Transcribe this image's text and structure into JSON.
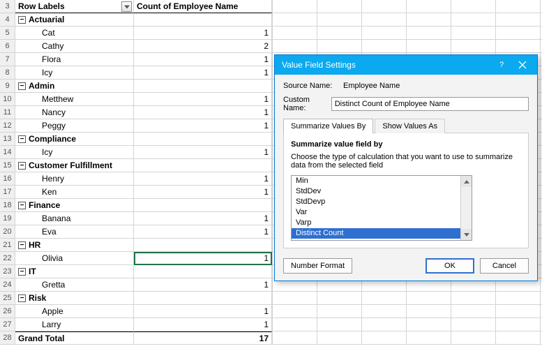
{
  "header": {
    "rowLabels": "Row Labels",
    "countCol": "Count of Employee Name",
    "startRowNum": 3
  },
  "pivot": [
    {
      "type": "group",
      "label": "Actuarial"
    },
    {
      "type": "item",
      "label": "Cat",
      "count": 1
    },
    {
      "type": "item",
      "label": "Cathy",
      "count": 2
    },
    {
      "type": "item",
      "label": "Flora",
      "count": 1
    },
    {
      "type": "item",
      "label": "Icy",
      "count": 1
    },
    {
      "type": "group",
      "label": "Admin"
    },
    {
      "type": "item",
      "label": "Metthew",
      "count": 1
    },
    {
      "type": "item",
      "label": "Nancy",
      "count": 1
    },
    {
      "type": "item",
      "label": "Peggy",
      "count": 1
    },
    {
      "type": "group",
      "label": "Compliance"
    },
    {
      "type": "item",
      "label": "Icy",
      "count": 1
    },
    {
      "type": "group",
      "label": "Customer Fulfillment"
    },
    {
      "type": "item",
      "label": "Henry",
      "count": 1
    },
    {
      "type": "item",
      "label": "Ken",
      "count": 1
    },
    {
      "type": "group",
      "label": "Finance"
    },
    {
      "type": "item",
      "label": "Banana",
      "count": 1
    },
    {
      "type": "item",
      "label": "Eva",
      "count": 1
    },
    {
      "type": "group",
      "label": "HR"
    },
    {
      "type": "item",
      "label": "Olivia",
      "count": 1,
      "selected": true
    },
    {
      "type": "group",
      "label": "IT"
    },
    {
      "type": "item",
      "label": "Gretta",
      "count": 1
    },
    {
      "type": "group",
      "label": "Risk"
    },
    {
      "type": "item",
      "label": "Apple",
      "count": 1
    },
    {
      "type": "item",
      "label": "Larry",
      "count": 1
    }
  ],
  "grandTotal": {
    "label": "Grand Total",
    "count": 17
  },
  "dialog": {
    "title": "Value Field Settings",
    "sourceNameLabel": "Source Name:",
    "sourceNameValue": "Employee Name",
    "customNameLabel": "Custom Name:",
    "customNameValue": "Distinct Count of Employee Name",
    "tab1": "Summarize Values By",
    "tab2": "Show Values As",
    "summarizeHeading": "Summarize value field by",
    "summarizeDesc": "Choose the type of calculation that you want to use to summarize data from the selected field",
    "listItems": [
      "Min",
      "StdDev",
      "StdDevp",
      "Var",
      "Varp",
      "Distinct Count"
    ],
    "listSelected": "Distinct Count",
    "numberFormatBtn": "Number Format",
    "okBtn": "OK",
    "cancelBtn": "Cancel"
  },
  "colors": {
    "accent": "#0ba9ef",
    "selection": "#2f6fd0",
    "excelGreen": "#217346"
  }
}
